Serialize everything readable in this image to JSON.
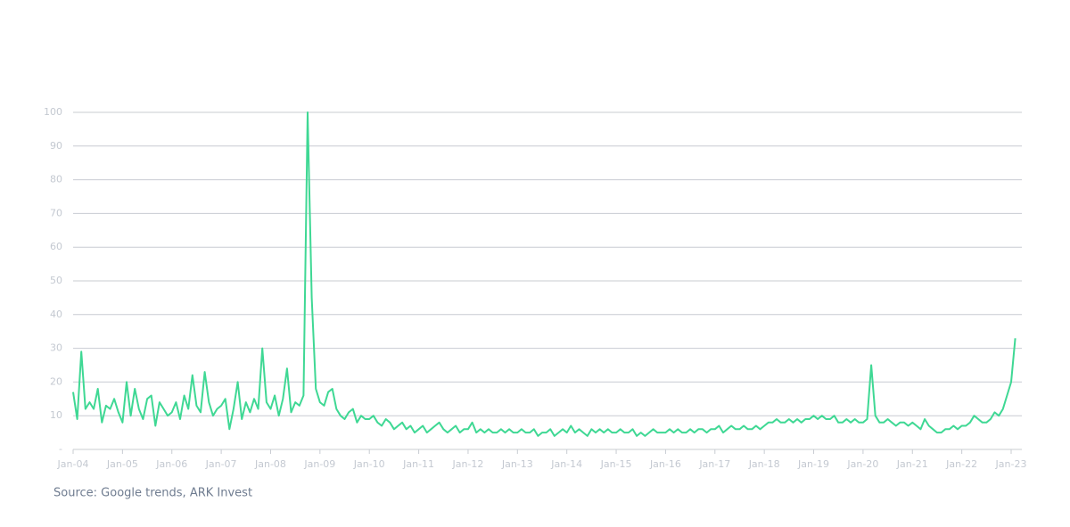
{
  "chart_data": {
    "type": "line",
    "source": "Source: Google trends, ARK Invest",
    "color": "#3fd894",
    "grid": true,
    "ylim": [
      0,
      100
    ],
    "yticks": [
      {
        "value": 0,
        "label": "-"
      },
      10,
      20,
      30,
      40,
      50,
      60,
      70,
      80,
      90,
      100
    ],
    "categories": [
      "Jan-04",
      null,
      null,
      null,
      null,
      null,
      null,
      null,
      null,
      null,
      null,
      null,
      "Jan-05",
      null,
      null,
      null,
      null,
      null,
      null,
      null,
      null,
      null,
      null,
      null,
      "Jan-06",
      null,
      null,
      null,
      null,
      null,
      null,
      null,
      null,
      null,
      null,
      null,
      "Jan-07",
      null,
      null,
      null,
      null,
      null,
      null,
      null,
      null,
      null,
      null,
      null,
      "Jan-08",
      null,
      null,
      null,
      null,
      null,
      null,
      null,
      null,
      null,
      null,
      null,
      "Jan-09",
      null,
      null,
      null,
      null,
      null,
      null,
      null,
      null,
      null,
      null,
      null,
      "Jan-10",
      null,
      null,
      null,
      null,
      null,
      null,
      null,
      null,
      null,
      null,
      null,
      "Jan-11",
      null,
      null,
      null,
      null,
      null,
      null,
      null,
      null,
      null,
      null,
      null,
      "Jan-12",
      null,
      null,
      null,
      null,
      null,
      null,
      null,
      null,
      null,
      null,
      null,
      "Jan-13",
      null,
      null,
      null,
      null,
      null,
      null,
      null,
      null,
      null,
      null,
      null,
      "Jan-14",
      null,
      null,
      null,
      null,
      null,
      null,
      null,
      null,
      null,
      null,
      null,
      "Jan-15",
      null,
      null,
      null,
      null,
      null,
      null,
      null,
      null,
      null,
      null,
      null,
      "Jan-16",
      null,
      null,
      null,
      null,
      null,
      null,
      null,
      null,
      null,
      null,
      null,
      "Jan-17",
      null,
      null,
      null,
      null,
      null,
      null,
      null,
      null,
      null,
      null,
      null,
      "Jan-18",
      null,
      null,
      null,
      null,
      null,
      null,
      null,
      null,
      null,
      null,
      null,
      "Jan-19",
      null,
      null,
      null,
      null,
      null,
      null,
      null,
      null,
      null,
      null,
      null,
      "Jan-20",
      null,
      null,
      null,
      null,
      null,
      null,
      null,
      null,
      null,
      null,
      null,
      "Jan-21",
      null,
      null,
      null,
      null,
      null,
      null,
      null,
      null,
      null,
      null,
      null,
      "Jan-22",
      null,
      null,
      null,
      null,
      null,
      null,
      null,
      null,
      null,
      null,
      null,
      "Jan-23",
      null
    ],
    "values": [
      17,
      9,
      29,
      12,
      14,
      12,
      18,
      8,
      13,
      12,
      15,
      11,
      8,
      20,
      10,
      18,
      12,
      9,
      15,
      16,
      7,
      14,
      12,
      10,
      11,
      14,
      9,
      16,
      12,
      22,
      13,
      11,
      23,
      14,
      10,
      12,
      13,
      15,
      6,
      12,
      20,
      9,
      14,
      11,
      15,
      12,
      30,
      14,
      12,
      16,
      10,
      15,
      24,
      11,
      14,
      13,
      16,
      100,
      45,
      18,
      14,
      13,
      17,
      18,
      12,
      10,
      9,
      11,
      12,
      8,
      10,
      9,
      9,
      10,
      8,
      7,
      9,
      8,
      6,
      7,
      8,
      6,
      7,
      5,
      6,
      7,
      5,
      6,
      7,
      8,
      6,
      5,
      6,
      7,
      5,
      6,
      6,
      8,
      5,
      6,
      5,
      6,
      5,
      5,
      6,
      5,
      6,
      5,
      5,
      6,
      5,
      5,
      6,
      4,
      5,
      5,
      6,
      4,
      5,
      6,
      5,
      7,
      5,
      6,
      5,
      4,
      6,
      5,
      6,
      5,
      6,
      5,
      5,
      6,
      5,
      5,
      6,
      4,
      5,
      4,
      5,
      6,
      5,
      5,
      5,
      6,
      5,
      6,
      5,
      5,
      6,
      5,
      6,
      6,
      5,
      6,
      6,
      7,
      5,
      6,
      7,
      6,
      6,
      7,
      6,
      6,
      7,
      6,
      7,
      8,
      8,
      9,
      8,
      8,
      9,
      8,
      9,
      8,
      9,
      9,
      10,
      9,
      10,
      9,
      9,
      10,
      8,
      8,
      9,
      8,
      9,
      8,
      8,
      9,
      25,
      10,
      8,
      8,
      9,
      8,
      7,
      8,
      8,
      7,
      8,
      7,
      6,
      9,
      7,
      6,
      5,
      5,
      6,
      6,
      7,
      6,
      7,
      7,
      8,
      10,
      9,
      8,
      8,
      9,
      11,
      10,
      12,
      16,
      20,
      33
    ]
  }
}
